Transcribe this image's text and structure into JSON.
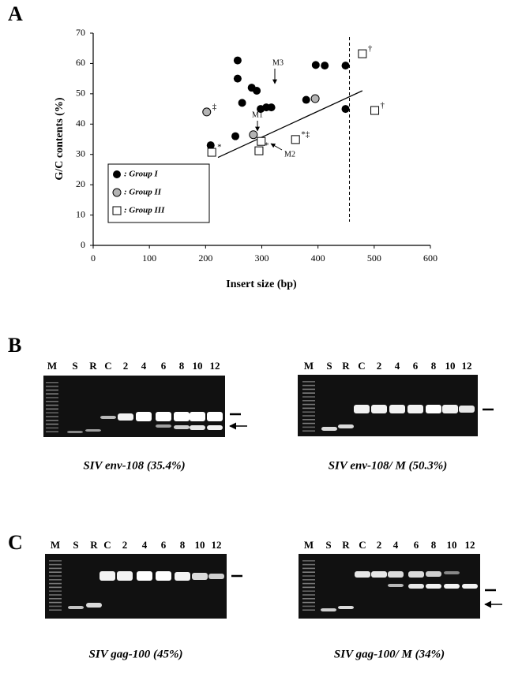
{
  "panel_labels": [
    "A",
    "B",
    "C"
  ],
  "chart_data": {
    "type": "scatter",
    "x_label": "Insert size (bp)",
    "y_label": "G/C contents (%)",
    "xlim": [
      0,
      600
    ],
    "ylim": [
      0,
      70
    ],
    "xticks": [
      0,
      100,
      200,
      300,
      400,
      500,
      600
    ],
    "yticks": [
      0,
      10,
      20,
      30,
      40,
      50,
      60,
      70
    ],
    "legend_position": "lower-left",
    "series": [
      {
        "name": ": Group I",
        "marker": "circle",
        "color": "#000000",
        "x": [
          257,
          257,
          253,
          265,
          282,
          291,
          298,
          308,
          317,
          379,
          396,
          412,
          449,
          449,
          209
        ],
        "y": [
          61,
          55,
          36,
          47,
          52,
          51,
          45,
          45.5,
          45.5,
          48,
          59.5,
          59.3,
          59.3,
          45,
          33
        ]
      },
      {
        "name": ": Group II",
        "marker": "circle",
        "color": "#b4b4b4",
        "x": [
          202,
          285,
          395
        ],
        "y": [
          44,
          36.5,
          48.4
        ],
        "point_labels": [
          "‡",
          null,
          null
        ]
      },
      {
        "name": ": Group III",
        "marker": "square",
        "color": "#ffffff",
        "x": [
          211,
          299,
          295,
          360,
          479,
          501
        ],
        "y": [
          30.7,
          34.3,
          31.2,
          34.9,
          63.2,
          44.5
        ],
        "point_labels": [
          "*",
          null,
          "*",
          "*‡",
          "†",
          "†"
        ]
      }
    ],
    "annotations": [
      "M1",
      "M2",
      "M3"
    ],
    "fit_line": {
      "x": [
        222,
        479
      ],
      "y": [
        29,
        51
      ]
    },
    "cutoff_x": 456
  },
  "gels": [
    {
      "lanes": [
        "M",
        "S",
        "R",
        "C",
        "2",
        "4",
        "6",
        "8",
        "10",
        "12"
      ],
      "caption": "SIV env-108 (35.4%)"
    },
    {
      "lanes": [
        "M",
        "S",
        "R",
        "C",
        "2",
        "4",
        "6",
        "8",
        "10",
        "12"
      ],
      "caption": "SIV env-108/ M (50.3%)"
    },
    {
      "lanes": [
        "M",
        "S",
        "R",
        "C",
        "2",
        "4",
        "6",
        "8",
        "10",
        "12"
      ],
      "caption": "SIV gag-100 (45%)"
    },
    {
      "lanes": [
        "M",
        "S",
        "R",
        "C",
        "2",
        "4",
        "6",
        "8",
        "10",
        "12"
      ],
      "caption": "SIV gag-100/ M (34%)"
    }
  ]
}
